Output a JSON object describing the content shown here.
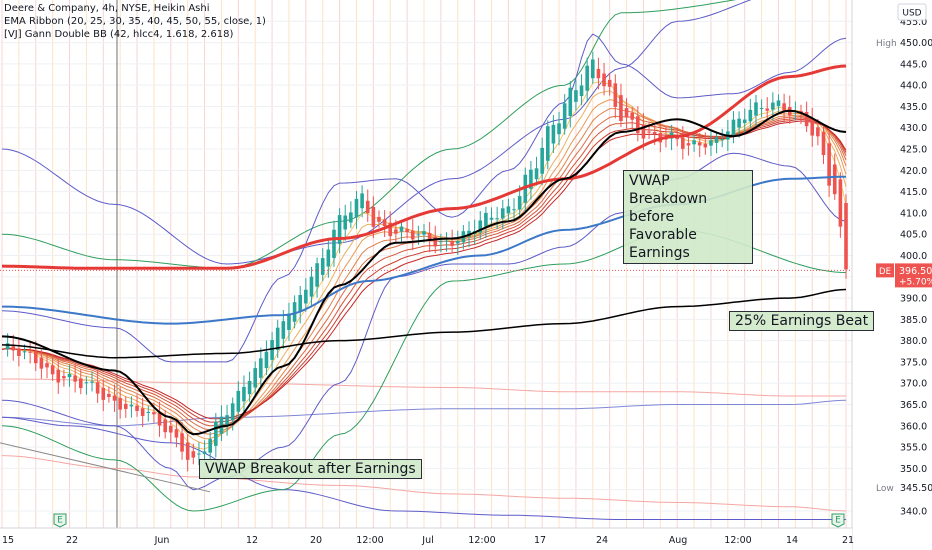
{
  "header": {
    "line1": "Deere & Company, 4h, NYSE, Heikin Ashi",
    "line2": "EMA Ribbon (20, 25, 30, 35, 40, 45, 50, 55, close, 1)",
    "line3": "[VJ] Gann Double BB (42, hlcc4, 1.618, 2.618)"
  },
  "currency": "USD",
  "annotations": {
    "breakout": "VWAP Breakout after Earnings",
    "breakdown": "VWAP\nBreakdown\nbefore\nFavorable\nEarnings",
    "beat": "25% Earnings Beat"
  },
  "markers": {
    "high_label": "High",
    "high_value": "450.00",
    "low_label": "Low",
    "low_value": "345.50",
    "symbol": "DE",
    "last_price": "396.50",
    "change": "+5.70%",
    "earnings_icon": "E"
  },
  "colors": {
    "up": "#26a69a",
    "down": "#ef5350",
    "vwap": "#3c78c8",
    "ema_long": "#e53935",
    "ema_black": "#000000",
    "bb_inner": "#5c5cc8",
    "bb_outer": "#2e9e5e",
    "ribbon_from": "#f6c667",
    "ribbon_to": "#c62828",
    "annotation_bg": "#d0e9c8"
  },
  "chart_data": {
    "type": "candlestick",
    "y_axis": {
      "min": 336,
      "max": 460,
      "side": "right",
      "ticks": [
        340,
        345,
        350,
        355,
        360,
        365,
        370,
        375,
        380,
        385,
        390,
        395,
        400,
        405,
        410,
        415,
        420,
        425,
        430,
        435,
        440,
        445,
        450,
        455
      ]
    },
    "x_axis": {
      "labels": [
        "15",
        "22",
        "Jun",
        "12",
        "20",
        "12:00",
        "Jul",
        "12:00",
        "17",
        "24",
        "Aug",
        "12:00",
        "14",
        "21"
      ]
    },
    "ohlc_anchor_closes": [
      [
        0,
        378
      ],
      [
        5,
        376
      ],
      [
        10,
        372
      ],
      [
        15,
        369
      ],
      [
        20,
        366
      ],
      [
        25,
        363
      ],
      [
        28,
        360
      ],
      [
        31,
        357
      ],
      [
        34,
        352
      ],
      [
        36,
        355
      ],
      [
        40,
        363
      ],
      [
        44,
        372
      ],
      [
        48,
        380
      ],
      [
        52,
        388
      ],
      [
        56,
        398
      ],
      [
        60,
        408
      ],
      [
        64,
        413
      ],
      [
        66,
        408
      ],
      [
        70,
        406
      ],
      [
        74,
        404
      ],
      [
        78,
        403
      ],
      [
        82,
        405
      ],
      [
        86,
        408
      ],
      [
        90,
        411
      ],
      [
        94,
        420
      ],
      [
        98,
        430
      ],
      [
        102,
        440
      ],
      [
        105,
        446
      ],
      [
        107,
        440
      ],
      [
        110,
        432
      ],
      [
        114,
        429
      ],
      [
        118,
        428
      ],
      [
        122,
        425
      ],
      [
        126,
        427
      ],
      [
        130,
        431
      ],
      [
        134,
        434
      ],
      [
        138,
        436
      ],
      [
        142,
        433
      ],
      [
        145,
        426
      ],
      [
        148,
        414
      ],
      [
        150,
        398
      ]
    ],
    "vwap_anchor": [
      [
        0,
        388
      ],
      [
        30,
        384
      ],
      [
        50,
        386
      ],
      [
        65,
        394
      ],
      [
        85,
        400
      ],
      [
        100,
        406
      ],
      [
        120,
        412
      ],
      [
        140,
        418
      ],
      [
        150,
        418.5
      ]
    ],
    "ema_long_anchor": [
      [
        0,
        397.5
      ],
      [
        15,
        397
      ],
      [
        40,
        397
      ],
      [
        60,
        404
      ],
      [
        80,
        411
      ],
      [
        100,
        418
      ],
      [
        120,
        428
      ],
      [
        140,
        442
      ],
      [
        150,
        444.5
      ]
    ],
    "ema_black_anchor": [
      [
        0,
        381
      ],
      [
        20,
        373
      ],
      [
        30,
        362
      ],
      [
        34,
        358
      ],
      [
        40,
        360
      ],
      [
        50,
        374
      ],
      [
        60,
        393
      ],
      [
        70,
        403
      ],
      [
        80,
        404
      ],
      [
        90,
        408
      ],
      [
        100,
        418
      ],
      [
        110,
        429
      ],
      [
        120,
        432
      ],
      [
        130,
        428
      ],
      [
        140,
        434
      ],
      [
        150,
        429
      ]
    ],
    "ema_black_long_anchor": [
      [
        0,
        379
      ],
      [
        20,
        376
      ],
      [
        40,
        377
      ],
      [
        60,
        380
      ],
      [
        80,
        382
      ],
      [
        100,
        384
      ],
      [
        120,
        388
      ],
      [
        140,
        390
      ],
      [
        150,
        392
      ]
    ],
    "bb_upper_inner_anchor": [
      [
        0,
        387
      ],
      [
        20,
        383
      ],
      [
        30,
        375
      ],
      [
        40,
        375
      ],
      [
        50,
        395
      ],
      [
        60,
        417
      ],
      [
        70,
        418
      ],
      [
        80,
        409
      ],
      [
        90,
        420
      ],
      [
        100,
        436
      ],
      [
        105,
        452
      ],
      [
        110,
        445
      ],
      [
        120,
        437
      ],
      [
        130,
        438
      ],
      [
        140,
        443
      ],
      [
        150,
        451
      ]
    ],
    "bb_lower_inner_anchor": [
      [
        0,
        366
      ],
      [
        20,
        360
      ],
      [
        30,
        350
      ],
      [
        34,
        345
      ],
      [
        40,
        348
      ],
      [
        50,
        355
      ],
      [
        60,
        370
      ],
      [
        70,
        395
      ],
      [
        80,
        398
      ],
      [
        90,
        398
      ],
      [
        100,
        402
      ],
      [
        110,
        410
      ],
      [
        120,
        418
      ],
      [
        130,
        424
      ],
      [
        140,
        421
      ],
      [
        150,
        408
      ]
    ],
    "bb_upper_outer_anchor": [
      [
        0,
        405
      ],
      [
        20,
        399
      ],
      [
        40,
        397
      ],
      [
        60,
        408
      ],
      [
        80,
        425
      ],
      [
        100,
        440
      ],
      [
        110,
        457
      ],
      [
        150,
        463
      ]
    ],
    "bb_lower_outer_anchor": [
      [
        0,
        360
      ],
      [
        20,
        352
      ],
      [
        34,
        340
      ],
      [
        50,
        345
      ],
      [
        60,
        358
      ],
      [
        80,
        394
      ],
      [
        100,
        398
      ],
      [
        120,
        406
      ],
      [
        150,
        396
      ]
    ],
    "bb_far_upper_anchor": [
      [
        0,
        425
      ],
      [
        20,
        412
      ],
      [
        40,
        398
      ],
      [
        60,
        403
      ],
      [
        80,
        418
      ],
      [
        100,
        432
      ],
      [
        110,
        444
      ],
      [
        120,
        455
      ],
      [
        140,
        462
      ],
      [
        150,
        466
      ]
    ],
    "bb_far_lower_anchor": [
      [
        0,
        362
      ],
      [
        12,
        360
      ],
      [
        30,
        356
      ],
      [
        50,
        345
      ],
      [
        70,
        340
      ],
      [
        90,
        339
      ],
      [
        110,
        338
      ],
      [
        130,
        338
      ],
      [
        150,
        338
      ]
    ],
    "flat_upper_anchor": [
      [
        0,
        371
      ],
      [
        40,
        370
      ],
      [
        80,
        369
      ],
      [
        100,
        368
      ],
      [
        120,
        368
      ],
      [
        140,
        367
      ],
      [
        150,
        367
      ]
    ],
    "flat_mid_anchor": [
      [
        0,
        362
      ],
      [
        20,
        360
      ],
      [
        40,
        362
      ],
      [
        80,
        364
      ],
      [
        100,
        364
      ],
      [
        120,
        365
      ],
      [
        140,
        365
      ],
      [
        150,
        366
      ]
    ],
    "flat_lower_anchor": [
      [
        0,
        353
      ],
      [
        20,
        350
      ],
      [
        34,
        348
      ],
      [
        60,
        346
      ],
      [
        80,
        344
      ],
      [
        100,
        343
      ],
      [
        120,
        342
      ],
      [
        140,
        341
      ],
      [
        150,
        340
      ]
    ]
  }
}
